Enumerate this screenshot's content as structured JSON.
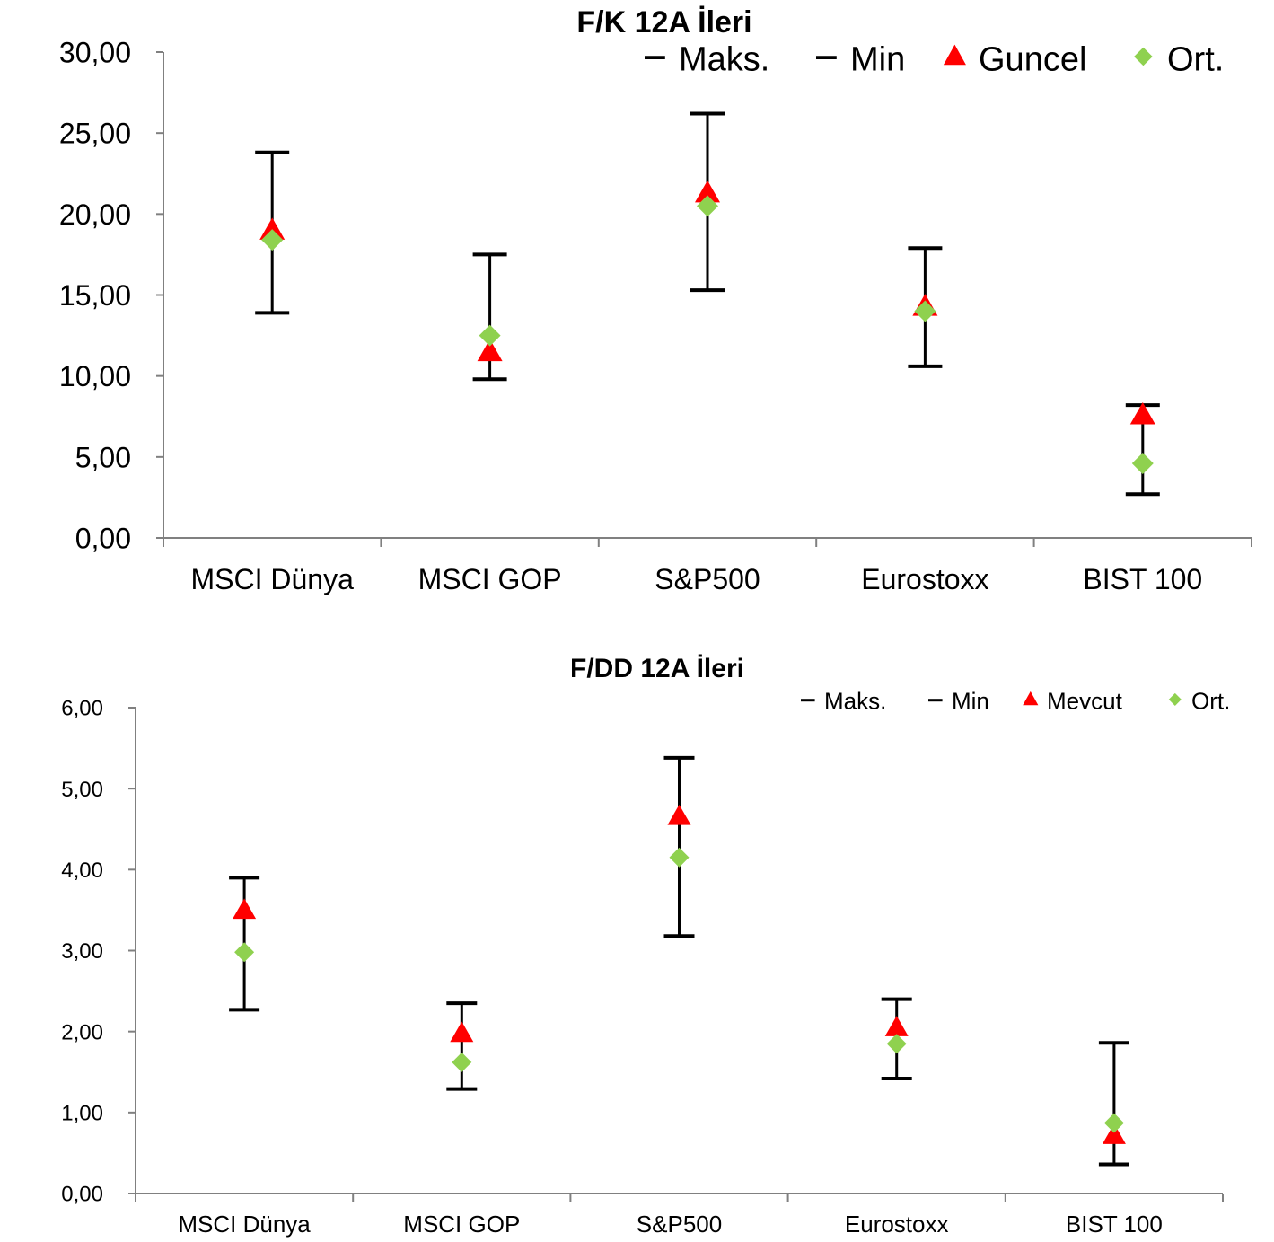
{
  "chart_data": [
    {
      "type": "scatter",
      "title": "F/K 12A İleri",
      "categories": [
        "MSCI Dünya",
        "MSCI GOP",
        "S&P500",
        "Eurostoxx",
        "BIST 100"
      ],
      "ylim": [
        0,
        30
      ],
      "yticks": [
        "0,00",
        "5,00",
        "10,00",
        "15,00",
        "20,00",
        "25,00",
        "30,00"
      ],
      "grid": false,
      "legend_position": "top-right",
      "series": [
        {
          "name": "Maks.",
          "marker": "dash",
          "color": "#000000",
          "values": [
            23.8,
            17.5,
            26.2,
            17.9,
            8.2
          ]
        },
        {
          "name": "Min",
          "marker": "dash",
          "color": "#000000",
          "values": [
            13.9,
            9.8,
            15.3,
            10.6,
            2.7
          ]
        },
        {
          "name": "Guncel",
          "marker": "triangle",
          "color": "#ff0000",
          "values": [
            19.0,
            11.5,
            21.3,
            14.3,
            7.6
          ]
        },
        {
          "name": "Ort.",
          "marker": "diamond",
          "color": "#8fd14f",
          "values": [
            18.4,
            12.5,
            20.5,
            14.0,
            4.6
          ]
        }
      ]
    },
    {
      "type": "scatter",
      "title": "F/DD 12A İleri",
      "categories": [
        "MSCI Dünya",
        "MSCI GOP",
        "S&P500",
        "Eurostoxx",
        "BIST 100"
      ],
      "ylim": [
        0,
        6
      ],
      "yticks": [
        "0,00",
        "1,00",
        "2,00",
        "3,00",
        "4,00",
        "5,00",
        "6,00"
      ],
      "grid": false,
      "legend_position": "top-right",
      "series": [
        {
          "name": "Maks.",
          "marker": "dash",
          "color": "#000000",
          "values": [
            3.9,
            2.35,
            5.38,
            2.4,
            1.86
          ]
        },
        {
          "name": "Min",
          "marker": "dash",
          "color": "#000000",
          "values": [
            2.27,
            1.29,
            3.18,
            1.42,
            0.36
          ]
        },
        {
          "name": "Mevcut",
          "marker": "triangle",
          "color": "#ff0000",
          "values": [
            3.5,
            1.98,
            4.66,
            2.05,
            0.72
          ]
        },
        {
          "name": "Ort.",
          "marker": "diamond",
          "color": "#8fd14f",
          "values": [
            2.98,
            1.62,
            4.15,
            1.85,
            0.87
          ]
        }
      ]
    }
  ]
}
